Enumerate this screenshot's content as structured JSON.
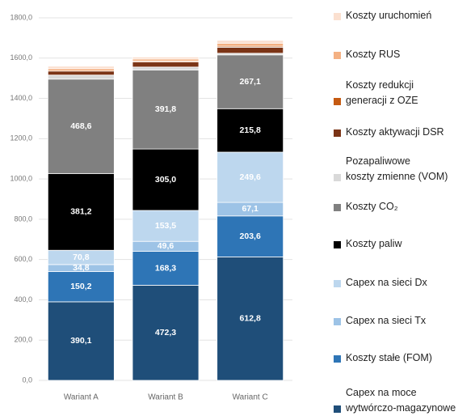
{
  "chart_data": {
    "type": "stacked_bar",
    "categories": [
      "Wariant A",
      "Wariant B",
      "Wariant C"
    ],
    "ylim": [
      0,
      1800
    ],
    "yticks": [
      {
        "value": 0,
        "label": "0,0"
      },
      {
        "value": 200,
        "label": "200,0"
      },
      {
        "value": 400,
        "label": "400,0"
      },
      {
        "value": 600,
        "label": "600,0"
      },
      {
        "value": 800,
        "label": "800,0"
      },
      {
        "value": 1000,
        "label": "1000,0"
      },
      {
        "value": 1200,
        "label": "1200,0"
      },
      {
        "value": 1400,
        "label": "1400,0"
      },
      {
        "value": 1600,
        "label": "1600,0"
      },
      {
        "value": 1800,
        "label": "1800,0"
      }
    ],
    "grid": true,
    "series": [
      {
        "name": "Capex na moce\nwytwórczo-magazynowe",
        "color": "#1f4e79",
        "values": [
          390.1,
          472.3,
          612.8
        ],
        "value_labels": [
          "390,1",
          "472,3",
          "612,8"
        ]
      },
      {
        "name": "Koszty stałe (FOM)",
        "color": "#2e75b6",
        "values": [
          150.2,
          168.3,
          203.6
        ],
        "value_labels": [
          "150,2",
          "168,3",
          "203,6"
        ]
      },
      {
        "name": "Capex na sieci Tx",
        "color": "#9dc3e6",
        "values": [
          34.8,
          49.6,
          67.1
        ],
        "value_labels": [
          "34,8",
          "49,6",
          "67,1"
        ]
      },
      {
        "name": "Capex na sieci Dx",
        "color": "#bdd7ee",
        "values": [
          70.8,
          153.5,
          249.6
        ],
        "value_labels": [
          "70,8",
          "153,5",
          "249,6"
        ]
      },
      {
        "name": "Koszty paliw",
        "color": "#000000",
        "values": [
          381.2,
          305.0,
          215.8
        ],
        "value_labels": [
          "381,2",
          "305,0",
          "215,8"
        ]
      },
      {
        "name": "Koszty CO₂",
        "color": "#808080",
        "values": [
          468.6,
          391.8,
          267.1
        ],
        "value_labels": [
          "468,6",
          "391,8",
          "267,1"
        ]
      },
      {
        "name": "Pozapaliwowe\nkoszty zmienne (VOM)",
        "color": "#d9d9d9",
        "values": [
          20,
          15,
          8
        ]
      },
      {
        "name": "Koszty aktywacji DSR",
        "color": "#7b3416",
        "values": [
          20,
          25,
          30
        ]
      },
      {
        "name": "Koszty redukcji\ngeneracji z OZE",
        "color": "#c55a11",
        "values": [
          0,
          5,
          5
        ]
      },
      {
        "name": "Koszty RUS",
        "color": "#f4b183",
        "values": [
          12,
          10,
          15
        ]
      },
      {
        "name": "Koszty uruchomień",
        "color": "#fbe0d0",
        "values": [
          12,
          10,
          14
        ]
      }
    ]
  }
}
